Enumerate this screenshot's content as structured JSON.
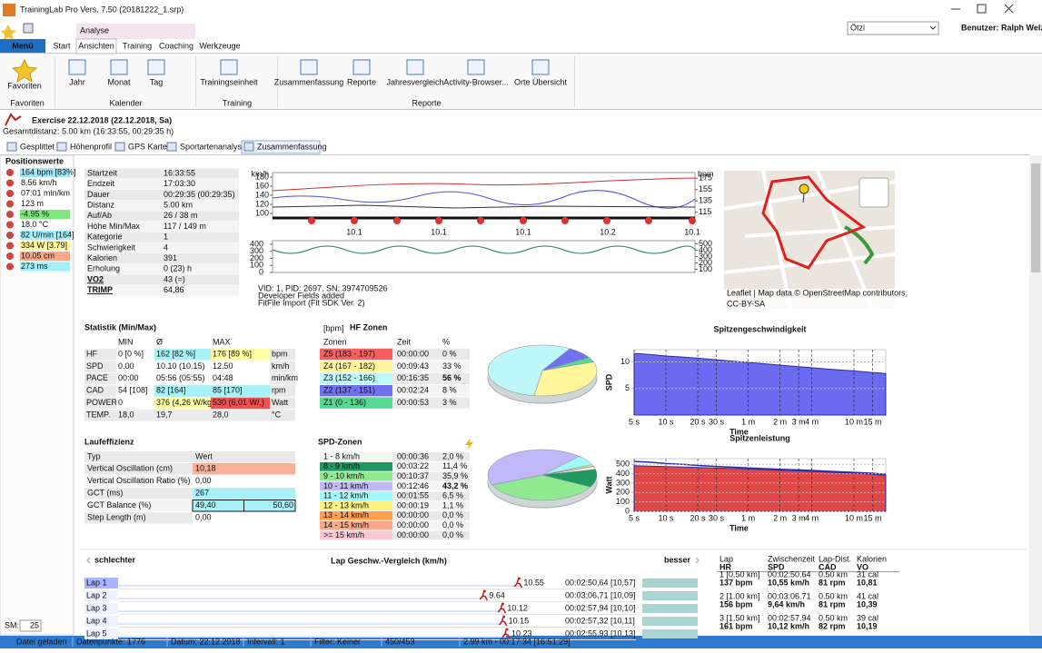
{
  "window": {
    "title": "TrainingLab Pro Vers. 7.50 (20181222_1.srp)"
  },
  "ribbon": {
    "context_tab": "Analyse",
    "tabs": [
      "Menü",
      "Start",
      "Ansichten",
      "Training",
      "Coaching",
      "Werkzeuge"
    ],
    "user_select": "Ötzi",
    "user": "Benutzer: Ralph Welz",
    "groups": [
      {
        "label": "Favoriten",
        "buttons": [
          "Favoriten"
        ]
      },
      {
        "label": "Kalender",
        "buttons": [
          "Jahr",
          "Monat",
          "Tag"
        ]
      },
      {
        "label": "Training",
        "buttons": [
          "Trainingseinheit"
        ]
      },
      {
        "label": "Reporte",
        "buttons": [
          "Zusammenfassung",
          "Reporte",
          "Jahresvergleich",
          "Activity-Browser...",
          "Orte Übersicht"
        ]
      }
    ]
  },
  "exercise": {
    "title": "Exercise 22.12.2018 (22.12.2018, Sa)",
    "subtitle": "Gesamtdistanz: 5.00 km (16:33:55, 00:29:35 h)",
    "views": [
      "Gesplittet",
      "Höhenprofil",
      "GPS Karte",
      "Sportartenanalyse",
      "Zusammenfassung"
    ]
  },
  "positions": {
    "title": "Positionswerte",
    "items": [
      {
        "text": "164 bpm [83%]",
        "color": "#9fe6f7"
      },
      {
        "text": "8.56 km/h",
        "color": "#ffffff"
      },
      {
        "text": "07:01 min/km",
        "color": "#ffffff"
      },
      {
        "text": "123 m",
        "color": "#ffffff"
      },
      {
        "text": "-4.95 %",
        "color": "#7ee87e"
      },
      {
        "text": "18.0 °C",
        "color": "#ffffff"
      },
      {
        "text": "82 U/min [164]",
        "color": "#9ff0f8"
      },
      {
        "text": "334 W [3.79]",
        "color": "#fff59a"
      },
      {
        "text": "10.05 cm",
        "color": "#f8a888"
      },
      {
        "text": "273 ms",
        "color": "#9ff0f8"
      }
    ]
  },
  "info": {
    "rows": [
      [
        "Startzeit",
        "16:33:55"
      ],
      [
        "Endzeit",
        "17:03:30"
      ],
      [
        "Dauer",
        "00:29:35 (00:29:35)"
      ],
      [
        "Distanz",
        "5.00 km"
      ],
      [
        "Auf/Ab",
        "26 / 38 m"
      ],
      [
        "Höhe Min/Max",
        "117 / 149 m"
      ],
      [
        "Kategorie",
        "1"
      ],
      [
        "Schwierigkeit",
        "4"
      ],
      [
        "Kalorien",
        "391"
      ],
      [
        "Erholung",
        "0 (23) h"
      ],
      [
        "VO2",
        "43  (=)"
      ],
      [
        "TRIMP",
        "64,86"
      ]
    ]
  },
  "mini_chart": {
    "left_units": "km/h",
    "right_units": "bpm",
    "ylim": [
      90,
      190
    ],
    "left_ticks": [
      180,
      160,
      140,
      120,
      100
    ],
    "y2lim": [
      105,
      185
    ],
    "right_ticks": [
      175,
      155,
      135,
      115
    ],
    "lower_ylim": [
      0,
      450
    ],
    "lower_ticks": [
      400,
      300,
      200,
      100,
      0
    ],
    "lower_y2lim": [
      50,
      550
    ],
    "lower_right_ticks": [
      500,
      400,
      300,
      200,
      100
    ],
    "x_labels": [
      "10.1",
      "10.1",
      "10.1",
      "10.2",
      "10.1"
    ],
    "notes": [
      "VID: 1, PID: 2697, SN: 3974709526",
      "Developer Fields added",
      "FitFile Import (Fit SDK Ver. 2)"
    ]
  },
  "map": {
    "attribution": "Leaflet | Map data © OpenStreetMap contributors,",
    "license": "CC-BY-SA"
  },
  "stats": {
    "title": "Statistik (Min/Max)",
    "headers": [
      "MIN",
      "Ø",
      "MAX"
    ],
    "rows": [
      {
        "label": "HF",
        "cells": [
          "0   [0 %]",
          "162  [82 %]",
          "176  [89 %]"
        ],
        "unit": "bpm",
        "colors": [
          "#ffffff",
          "#a6f2f8",
          "#ffffa6"
        ]
      },
      {
        "label": "SPD",
        "cells": [
          "0.00",
          "10.10  (10.15)",
          "12.50"
        ],
        "unit": "km/h",
        "colors": [
          "#ffffff",
          "#ffffff",
          "#ffffff"
        ]
      },
      {
        "label": "PACE",
        "cells": [
          "00:00",
          "05:56  (05:55)",
          "04:48"
        ],
        "unit": "min/km",
        "colors": [
          "#ffffff",
          "#ffffff",
          "#ffffff"
        ]
      },
      {
        "label": "CAD",
        "cells": [
          "54  [108]",
          "82  [164]",
          "85  [170]"
        ],
        "unit": "rpm",
        "colors": [
          "#ffffff",
          "#a6f2f8",
          "#a6f2f8"
        ]
      },
      {
        "label": "POWER",
        "cells": [
          "0",
          "376  (4,26 W/kg)",
          "530  (6,01 W/.)"
        ],
        "unit": "Watt",
        "colors": [
          "#ffffff",
          "#ffffa6",
          "#f05050"
        ]
      },
      {
        "label": "TEMP.",
        "cells": [
          "18,0",
          "19,7",
          "28,0"
        ],
        "unit": "°C",
        "colors": [
          "#ececec",
          "#ececec",
          "#ececec"
        ]
      }
    ]
  },
  "hf_zones": {
    "unit": "[bpm]",
    "title": "HF Zonen",
    "headers": [
      "Zonen",
      "Zeit",
      "%"
    ],
    "rows": [
      {
        "zone": "Z5 (183 - 197)",
        "time": "00:00:00",
        "pct": "0 %",
        "color": "#f46060"
      },
      {
        "zone": "Z4 (167 - 182)",
        "time": "00:09:43",
        "pct": "33 %",
        "color": "#fff59a"
      },
      {
        "zone": "Z3 (152 - 166)",
        "time": "00:16:35",
        "pct": "56 %",
        "color": "#bdf7f7"
      },
      {
        "zone": "Z2 (137 - 151)",
        "time": "00:02:24",
        "pct": "8 %",
        "color": "#7070f0"
      },
      {
        "zone": "Z1 (0 - 136)",
        "time": "00:00:53",
        "pct": "3 %",
        "color": "#58d890"
      }
    ]
  },
  "efficiency": {
    "title": "Laufeffizienz",
    "headers": [
      "Typ",
      "Wert"
    ],
    "rows": [
      {
        "label": "Vertical Oscillation (cm)",
        "values": [
          "10,18"
        ],
        "color": "#f8b098"
      },
      {
        "label": "Vertical Oscillation Ratio (%)",
        "values": [
          "0,00"
        ],
        "color": "#ffffff"
      },
      {
        "label": "GCT (ms)",
        "values": [
          "267"
        ],
        "color": "#a6f2f8"
      },
      {
        "label": "GCT Balance (%)",
        "values": [
          "49,40",
          "50,60"
        ],
        "color": "#a6f2f8"
      },
      {
        "label": "Step Length (m)",
        "values": [
          "0,00"
        ],
        "color": "#ffffff"
      }
    ]
  },
  "spd_zones": {
    "title": "SPD-Zonen",
    "rows": [
      {
        "zone": "1 - 8 km/h",
        "time": "00:00:36",
        "pct": "2,0 %",
        "color": "#eef6ee"
      },
      {
        "zone": "8 - 9 km/h",
        "time": "00:03:22",
        "pct": "11,4 %",
        "color": "#209860"
      },
      {
        "zone": "9 - 10 km/h",
        "time": "00:10:37",
        "pct": "35,9 %",
        "color": "#90e890"
      },
      {
        "zone": "10 - 11 km/h",
        "time": "00:12:46",
        "pct": "43,2 %",
        "color": "#c0b8f8"
      },
      {
        "zone": "11 - 12 km/h",
        "time": "00:01:55",
        "pct": "6,5 %",
        "color": "#a0f8f8"
      },
      {
        "zone": "12 - 13 km/h",
        "time": "00:00:19",
        "pct": "1,1 %",
        "color": "#fff080"
      },
      {
        "zone": "13 - 14 km/h",
        "time": "00:00:00",
        "pct": "0,0 %",
        "color": "#ffa050"
      },
      {
        "zone": "14 - 15 km/h",
        "time": "00:00:00",
        "pct": "0,0 %",
        "color": "#f8a888"
      },
      {
        "zone": ">= 15 km/h",
        "time": "00:00:00",
        "pct": "0,0 %",
        "color": "#f8c8d0"
      }
    ]
  },
  "chart_data": [
    {
      "type": "pie",
      "values": [
        0,
        33,
        56,
        8,
        3
      ],
      "colors": [
        "#f46060",
        "#fff59a",
        "#bdf7f7",
        "#7070f0",
        "#58d890"
      ]
    },
    {
      "type": "pie",
      "values": [
        2,
        11.4,
        35.9,
        43.2,
        6.5,
        1.1,
        0,
        0,
        0
      ],
      "colors": [
        "#eef6ee",
        "#209860",
        "#90e890",
        "#c0b8f8",
        "#a0f8f8",
        "#fff080",
        "#ffa050",
        "#f8a888",
        "#f8c8d0"
      ]
    },
    {
      "type": "area",
      "title": "Spitzengeschwindigkeit",
      "ylabel": "SPD",
      "xlabel": "Time",
      "log_x": true,
      "xlim": [
        5,
        1200
      ],
      "ylim": [
        0,
        12.3
      ],
      "yticks": [
        5,
        10
      ],
      "xticks": [
        {
          "value": 5,
          "label": "5 s"
        },
        {
          "value": 10,
          "label": "10 s"
        },
        {
          "value": 20,
          "label": "20 s"
        },
        {
          "value": 30,
          "label": "30 s"
        },
        {
          "value": 60,
          "label": "1 m"
        },
        {
          "value": 120,
          "label": "2 m"
        },
        {
          "value": 180,
          "label": "3 m"
        },
        {
          "value": 240,
          "label": "4 m"
        },
        {
          "value": 600,
          "label": "10 m"
        },
        {
          "value": 900,
          "label": "15 m"
        }
      ],
      "x": [
        5,
        7,
        10,
        15,
        20,
        30,
        45,
        60,
        90,
        120,
        180,
        240,
        360,
        600,
        900,
        1200
      ],
      "series": [
        {
          "color": "#6b6bf0",
          "style": "area",
          "values": [
            11.6,
            11.4,
            11.1,
            10.9,
            10.7,
            10.4,
            10.1,
            9.9,
            9.6,
            9.4,
            9.1,
            8.9,
            8.6,
            8.3,
            8.0,
            7.8
          ]
        }
      ]
    },
    {
      "type": "area",
      "title": "Spitzenleistung",
      "ylabel": "Watt",
      "xlabel": "Time",
      "log_x": true,
      "xlim": [
        5,
        1200
      ],
      "ylim": [
        0,
        560
      ],
      "yticks": [
        0,
        100,
        200,
        300,
        400,
        500
      ],
      "xticks": [
        {
          "value": 5,
          "label": "5 s"
        },
        {
          "value": 10,
          "label": "10 s"
        },
        {
          "value": 20,
          "label": "20 s"
        },
        {
          "value": 30,
          "label": "30 s"
        },
        {
          "value": 60,
          "label": "1 m"
        },
        {
          "value": 120,
          "label": "2 m"
        },
        {
          "value": 180,
          "label": "3 m"
        },
        {
          "value": 240,
          "label": "4 m"
        },
        {
          "value": 600,
          "label": "10 m"
        },
        {
          "value": 900,
          "label": "15 m"
        }
      ],
      "x": [
        5,
        7,
        10,
        15,
        20,
        30,
        45,
        60,
        90,
        120,
        180,
        240,
        360,
        600,
        900,
        1200
      ],
      "series": [
        {
          "color": "#e04848",
          "style": "area",
          "values": [
            485,
            480,
            476,
            471,
            466,
            460,
            455,
            450,
            442,
            436,
            430,
            424,
            415,
            405,
            395,
            382
          ]
        },
        {
          "color": "#2a2aa8",
          "style": "line",
          "values": [
            530,
            522,
            508,
            498,
            488,
            477,
            468,
            461,
            452,
            446,
            440,
            434,
            425,
            414,
            404,
            394
          ]
        }
      ]
    }
  ],
  "laps": {
    "worse": "schlechter",
    "title": "Lap Geschw.-Vergleich (km/h)",
    "better": "besser",
    "xlim": [
      0,
      11.5
    ],
    "rows": [
      {
        "label": "Lap 1",
        "speed": 10.55,
        "time": "00:02:50,64",
        "avg": "[10,57]"
      },
      {
        "label": "Lap 2",
        "speed": 9.64,
        "time": "00:03:06,71",
        "avg": "[10,09]"
      },
      {
        "label": "Lap 3",
        "speed": 10.12,
        "time": "00:02:57,94",
        "avg": "[10,10]"
      },
      {
        "label": "Lap 4",
        "speed": 10.15,
        "time": "00:02:57,32",
        "avg": "[10,11]"
      },
      {
        "label": "Lap 5",
        "speed": 10.23,
        "time": "00:02:55,93",
        "avg": "[10,13]"
      }
    ]
  },
  "lap_table": {
    "headers": [
      [
        "Lap",
        "HR"
      ],
      [
        "Zwischenzeit",
        "SPD"
      ],
      [
        "Lap-Dist.",
        "CAD"
      ],
      [
        "Kalorien",
        "VO"
      ]
    ],
    "rows": [
      [
        [
          "1  [0.50 km]",
          "137 bpm"
        ],
        [
          "00:02:50.64",
          "10,55 km/h"
        ],
        [
          "0.50 km",
          "81 rpm"
        ],
        [
          "31 cal",
          "10,81"
        ]
      ],
      [
        [
          "2  [1.00 km]",
          "156 bpm"
        ],
        [
          "00:03:06.71",
          "9,64 km/h"
        ],
        [
          "0.50 km",
          "81 rpm"
        ],
        [
          "41 cal",
          "10,39"
        ]
      ],
      [
        [
          "3  [1.50 km]",
          "161 bpm"
        ],
        [
          "00:02:57.94",
          "10,12 km/h"
        ],
        [
          "0.50 km",
          "82 rpm"
        ],
        [
          "39 cal",
          "10,19"
        ]
      ]
    ]
  },
  "sm": {
    "label": "SM:",
    "value": "25"
  },
  "status": [
    "Datei geladen",
    "Datenpunkte: 1776",
    "Datum: 22.12.2018",
    "Intervall: 1",
    "Filter: Keiner",
    "450/453",
    "2.99 km - 00:17:34 [16:51:29]"
  ]
}
